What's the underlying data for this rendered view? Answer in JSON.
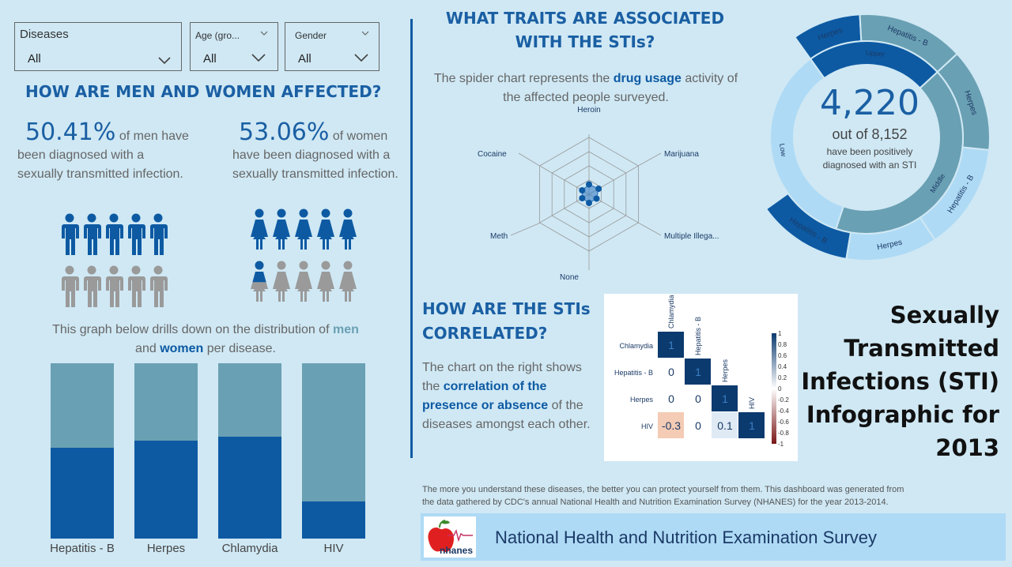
{
  "filters": {
    "diseases": {
      "label": "Diseases",
      "value": "All"
    },
    "age": {
      "label": "Age (gro...",
      "value": "All"
    },
    "gender": {
      "label": "Gender",
      "value": "All"
    }
  },
  "men_women": {
    "heading": "HOW ARE MEN AND WOMEN AFFECTED?",
    "men_pct": "50.41%",
    "men_text_1": "of men have",
    "men_text_2": "been diagnosed with a",
    "men_text_3": "sexually transmitted infection.",
    "women_pct": "53.06%",
    "women_text_1": "of women",
    "women_text_2": "have been diagnosed with a",
    "women_text_3": "sexually transmitted infection.",
    "drill_text_1": "This graph below drills down on the distribution of",
    "drill_men": "men",
    "drill_and": "and",
    "drill_women": "women",
    "drill_text_2": "per disease.",
    "men_icons_filled": 5,
    "women_icons_filled": 5.2
  },
  "traits": {
    "heading_1": "WHAT TRAITS ARE ASSOCIATED",
    "heading_2": "WITH THE STIs?",
    "desc_1": "The spider chart represents the",
    "desc_bold": "drug usage",
    "desc_2": "activity of",
    "desc_3": "the affected people surveyed."
  },
  "correlation": {
    "heading_1": "HOW ARE THE STIs",
    "heading_2": "CORRELATED?",
    "desc_1": "The chart on the right shows",
    "desc_2": "the",
    "desc_bold_1": "correlation of the",
    "desc_bold_2": "presence or absence",
    "desc_3": "of the",
    "desc_4": "diseases amongst each other."
  },
  "donut": {
    "big_number": "4,220",
    "out_of": "out of 8,152",
    "line_1": "have been positively",
    "line_2": "diagnosed with an STI",
    "outer_labels": [
      "Herpes",
      "Hepatitis - B",
      "Herpes",
      "Hepatitis - B",
      "Herpes",
      "Hepatitis - B"
    ],
    "inner_labels": [
      "Upper",
      "Middle",
      "Low"
    ]
  },
  "title": {
    "line_1": "Sexually",
    "line_2": "Transmitted",
    "line_3": "Infections (STI)",
    "line_4": "Infographic for",
    "line_5": "2013"
  },
  "footer": {
    "line_1": "The more you understand these diseases, the better you can protect yourself from them. This dashboard was generated from",
    "line_2": "the data gathered by CDC's annual National Health and Nutrition Examination Survey (NHANES) for the year 2013-2014."
  },
  "banner": {
    "text": "National Health and Nutrition Examination Survey",
    "logo_text": "nhanes"
  },
  "colors": {
    "dark_blue": "#0d5aa3",
    "teal": "#6aa0b3",
    "light": "#aedaf5",
    "bg": "#cfe8f4"
  },
  "chart_data": [
    {
      "type": "bar",
      "categories": [
        "Hepatitis - B",
        "Herpes",
        "Chlamydia",
        "HIV"
      ],
      "series": [
        {
          "values": [
            0.52,
            0.56,
            0.58,
            0.21
          ]
        },
        {
          "values": [
            0.48,
            0.44,
            0.42,
            0.79
          ]
        }
      ],
      "ylim": [
        0,
        1
      ]
    },
    {
      "type": "radar",
      "axes": [
        "Heroin",
        "Marijuana",
        "Multiple Illega...",
        "None",
        "Meth",
        "Cocaine"
      ],
      "values": [
        0.25,
        0.28,
        0.22,
        0.22,
        0.2,
        0.2
      ],
      "rings": 4
    },
    {
      "type": "heatmap",
      "labels": [
        "Chlamydia",
        "Hepatitis - B",
        "Herpes",
        "HIV"
      ],
      "values": [
        [
          1,
          null,
          null,
          null
        ],
        [
          0,
          1,
          null,
          null
        ],
        [
          0,
          0,
          1,
          null
        ],
        [
          -0.3,
          0,
          0.1,
          1
        ]
      ],
      "cell_text": [
        [
          "1",
          "",
          "",
          ""
        ],
        [
          "0",
          "1",
          "",
          ""
        ],
        [
          "0",
          "0",
          "1",
          ""
        ],
        [
          "-0.3",
          "0",
          "0.1",
          "1"
        ]
      ],
      "scale_ticks": [
        "1",
        "0.8",
        "0.6",
        "0.4",
        "0.2",
        "0",
        "-0.2",
        "-0.4",
        "-0.6",
        "-0.8",
        "-1"
      ]
    },
    {
      "type": "pie",
      "outer": [
        {
          "label": "Herpes",
          "value": 0.09,
          "color": "#0d5aa3"
        },
        {
          "label": "Hepatitis - B",
          "value": 0.14,
          "color": "#6aa0b3"
        },
        {
          "label": "Herpes",
          "value": 0.135,
          "color": "#6aa0b3"
        },
        {
          "label": "Hepatitis - B",
          "value": 0.14,
          "color": "#aedaf5"
        },
        {
          "label": "Herpes",
          "value": 0.12,
          "color": "#aedaf5"
        },
        {
          "label": "Hepatitis - B",
          "value": 0.125,
          "color": "#0d5aa3"
        }
      ],
      "inner": [
        {
          "label": "Upper",
          "value": 0.23,
          "color": "#0d5aa3"
        },
        {
          "label": "Middle",
          "value": 0.42,
          "color": "#6aa0b3"
        },
        {
          "label": "Low",
          "value": 0.35,
          "color": "#aedaf5"
        }
      ]
    }
  ]
}
